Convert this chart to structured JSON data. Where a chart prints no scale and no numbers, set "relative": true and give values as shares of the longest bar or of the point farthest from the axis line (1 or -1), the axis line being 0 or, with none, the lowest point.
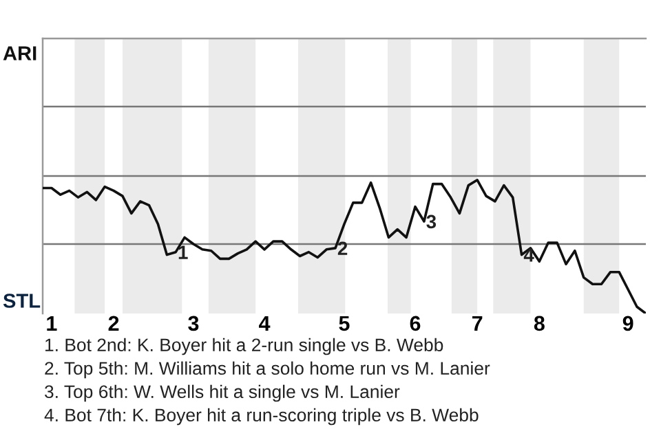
{
  "chart_data": {
    "type": "line",
    "relative": true,
    "categories": [
      null,
      "1",
      null,
      null,
      null,
      null,
      null,
      null,
      "2",
      null,
      null,
      null,
      null,
      null,
      null,
      null,
      null,
      "3",
      null,
      null,
      null,
      null,
      null,
      null,
      null,
      "4",
      null,
      null,
      null,
      null,
      null,
      null,
      null,
      null,
      "5",
      null,
      null,
      null,
      null,
      null,
      null,
      null,
      "6",
      null,
      null,
      null,
      null,
      null,
      null,
      "7",
      null,
      null,
      null,
      null,
      null,
      null,
      "8",
      null,
      null,
      null,
      null,
      null,
      null,
      null,
      null,
      null,
      "9",
      null,
      null
    ],
    "series": [
      {
        "color": "#111111",
        "values": [
          0.94,
          0.94,
          0.89,
          0.92,
          0.87,
          0.91,
          0.85,
          0.95,
          0.92,
          0.88,
          0.75,
          0.84,
          0.81,
          0.67,
          0.44,
          0.46,
          0.57,
          0.52,
          0.48,
          0.47,
          0.41,
          0.41,
          0.45,
          0.48,
          0.54,
          0.48,
          0.54,
          0.54,
          0.48,
          0.43,
          0.46,
          0.42,
          0.48,
          0.49,
          0.67,
          0.83,
          0.83,
          0.98,
          0.79,
          0.57,
          0.63,
          0.57,
          0.8,
          0.69,
          0.97,
          0.97,
          0.87,
          0.75,
          0.96,
          1,
          0.88,
          0.84,
          0.96,
          0.87,
          0.44,
          0.49,
          0.39,
          0.53,
          0.53,
          0.37,
          0.47,
          0.27,
          0.22,
          0.22,
          0.31,
          0.31,
          0.18,
          0.05,
          0
        ]
      }
    ],
    "marker": "none",
    "line_style": "solid",
    "ref_lines": [
      {
        "axis": "y",
        "value": 0.52,
        "color": "#777777"
      },
      {
        "axis": "y",
        "value": 1.03,
        "color": "#777777"
      },
      {
        "axis": "y",
        "value": 1.55,
        "color": "#777777"
      }
    ],
    "annotations": [
      {
        "text": "1",
        "y": 0.46
      },
      {
        "text": "2",
        "y": 0.49
      },
      {
        "text": "3",
        "y": 0.69
      },
      {
        "text": "4",
        "y": 0.44
      },
      "ARI",
      "STL",
      "1. Bot 2nd: K. Boyer hit a 2-run single vs B. Webb",
      "2. Top 5th: M. Williams hit a solo home run vs M. Lanier",
      "3. Top 6th: W. Wells hit a single vs M. Lanier",
      "4. Bot 7th: K. Boyer hit a run-scoring triple vs B. Webb"
    ]
  }
}
